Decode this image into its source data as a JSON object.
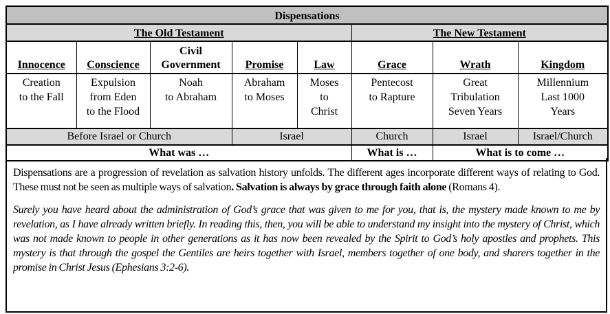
{
  "title": "Dispensations",
  "testaments": {
    "old": "The Old Testament",
    "new": "The New Testament"
  },
  "dispensations": [
    {
      "name_line1": "",
      "name": "Innocence",
      "period": [
        "Creation",
        "to the Fall"
      ]
    },
    {
      "name_line1": "",
      "name": "Conscience",
      "period": [
        "Expulsion",
        "from Eden",
        "to the Flood"
      ]
    },
    {
      "name_line1": "Civil",
      "name": "Government",
      "period": [
        "Noah",
        "to Abraham"
      ]
    },
    {
      "name_line1": "",
      "name": "Promise",
      "period": [
        "Abraham",
        "to Moses"
      ]
    },
    {
      "name_line1": "",
      "name": "Law",
      "period": [
        "Moses",
        "to",
        "Christ"
      ]
    },
    {
      "name_line1": "",
      "name": "Grace",
      "period": [
        "Pentecost",
        "to Rapture"
      ]
    },
    {
      "name_line1": "",
      "name": "Wrath",
      "period": [
        "Great",
        "Tribulation",
        "Seven Years"
      ]
    },
    {
      "name_line1": "",
      "name": "Kingdom",
      "period": [
        "Millennium",
        "Last 1000",
        "Years"
      ]
    }
  ],
  "groups": [
    "Before Israel or Church",
    "Israel",
    "Church",
    "Israel",
    "Israel/Church"
  ],
  "time": [
    "What was …",
    "What is …",
    "What is to come …"
  ],
  "paragraph1": {
    "text": "Dispensations are a progression of revelation as salvation history unfolds. The different ages incorporate different ways of relating to God. These must not be seen as multiple ways of salvation",
    "bold": ". Salvation is always by grace through faith alone",
    "ref": " (Romans 4)."
  },
  "paragraph2": "Surely you have heard about the administration of God’s grace that was given to me for you, that is, the mystery made known to me by revelation, as I have already written briefly.  In reading this, then, you will be able to understand my insight into the mystery of Christ, which was not made known to people in other generations as it has now been revealed by the Spirit to God’s holy apostles and prophets. This mystery is that through the gospel the Gentiles are heirs together with Israel, members together of one body, and sharers together in the promise in Christ Jesus (Ephesians 3:2-6).",
  "colors": {
    "title_bg": "#c0c0c0",
    "subheader_bg": "#d9d9d9"
  }
}
